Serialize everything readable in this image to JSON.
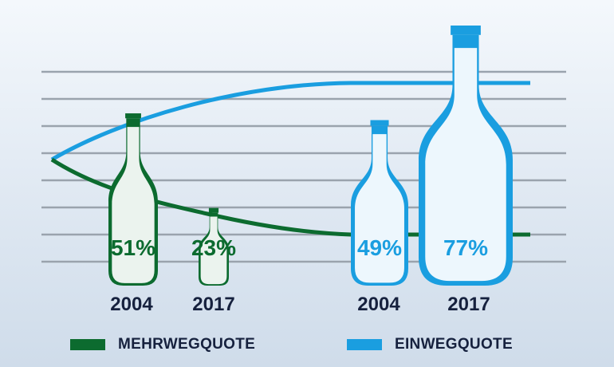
{
  "chart_data": {
    "type": "bar",
    "categories": [
      "2004",
      "2017",
      "2004",
      "2017"
    ],
    "series": [
      {
        "name": "MEHRWEGQUOTE",
        "color": "#0c6b2f",
        "x": [
          "2004",
          "2017"
        ],
        "values": [
          51,
          23
        ],
        "labels": [
          "51%",
          "23%"
        ]
      },
      {
        "name": "EINWEGQUOTE",
        "color": "#1a9ee0",
        "x": [
          "2004",
          "2017"
        ],
        "values": [
          49,
          77
        ],
        "labels": [
          "49%",
          "77%"
        ]
      }
    ],
    "grid": true,
    "legend_position": "bottom"
  },
  "years": [
    "2004",
    "2017",
    "2004",
    "2017"
  ],
  "legend": [
    {
      "label": "MEHRWEGQUOTE",
      "color": "#0c6b2f"
    },
    {
      "label": "EINWEGQUOTE",
      "color": "#1a9ee0"
    }
  ]
}
